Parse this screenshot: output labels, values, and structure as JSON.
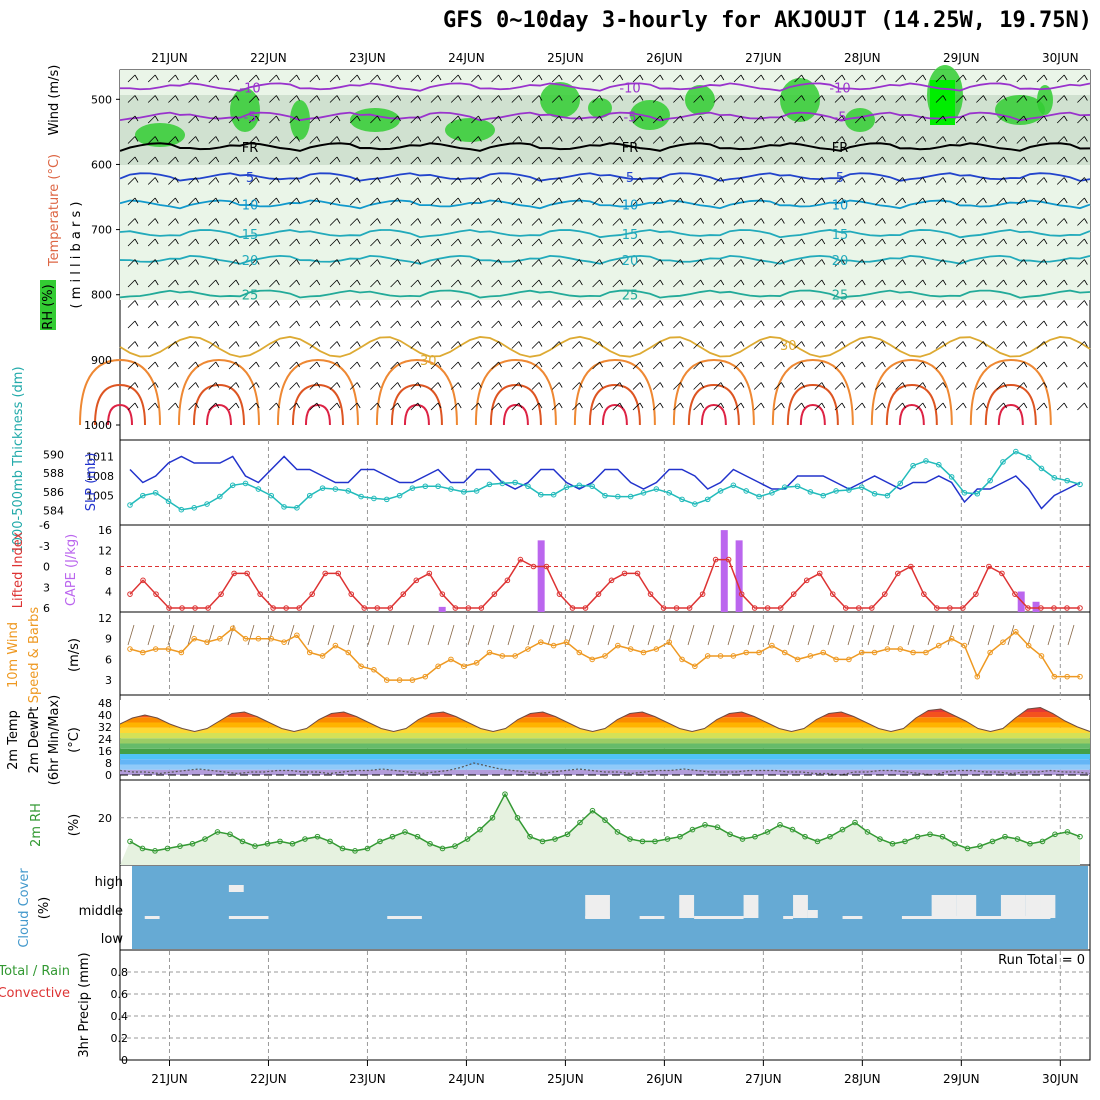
{
  "title": "GFS 0~10day 3-hourly for AKJOUJT (14.25W, 19.75N)",
  "dates": [
    "21JUN",
    "22JUN",
    "23JUN",
    "24JUN",
    "25JUN",
    "26JUN",
    "27JUN",
    "28JUN",
    "29JUN",
    "30JUN"
  ],
  "run_total": "Run Total = 0",
  "colors": {
    "rh_green": "#33cc33",
    "temp_purple": "#9933cc",
    "slp": "#2233cc",
    "thick": "#22bbbb",
    "li": "#dd3333",
    "cape": "#bb66ee",
    "wind": "#ee9922",
    "rh2m": "#339933",
    "cloud": "#66aad4"
  },
  "panels": {
    "upper": {
      "labels": {
        "wind": "Wind (m/s)",
        "temp": "Temperature (°C)",
        "rh": "RH (%)",
        "mb": "( m i l l i b a r s )"
      },
      "yticks": [
        "500",
        "600",
        "700",
        "800",
        "900",
        "1000"
      ],
      "contour_labels": [
        "-10",
        "-5",
        "FR",
        "5",
        "10",
        "15",
        "20",
        "25",
        "30"
      ]
    },
    "slp": {
      "label_thick": "1000-500mb Thickness (dm)",
      "label_slp": "SLP (mb)",
      "yticks_left": [
        "590",
        "588",
        "586",
        "584"
      ],
      "yticks_right": [
        "1011",
        "1008",
        "1005"
      ]
    },
    "cape": {
      "label_li": "Lifted Index",
      "label_cape": "CAPE (J/kg)",
      "yticks_left": [
        "-3",
        "0",
        "3",
        "6",
        "-6"
      ],
      "yticks_right": [
        "16",
        "12",
        "8",
        "4"
      ]
    },
    "wind10": {
      "label1": "10m Wind",
      "label2": "Speed & Barbs",
      "unit": "(m/s)",
      "yticks": [
        "12",
        "9",
        "6",
        "3"
      ]
    },
    "temp2m": {
      "label1": "2m Temp",
      "label2": "2m DewPt",
      "label3": "(6hr Min/Max)",
      "unit": "(°C)",
      "yticks": [
        "48",
        "40",
        "32",
        "24",
        "16",
        "8",
        "0"
      ]
    },
    "rh2m": {
      "label": "2m RH",
      "unit": "(%)",
      "yticks": [
        "20"
      ]
    },
    "cloud": {
      "label": "Cloud Cover",
      "unit": "(%)",
      "levels": [
        "high",
        "middle",
        "low"
      ]
    },
    "precip": {
      "label1": "Total / Rain",
      "label2": "Convective",
      "label3": "3hr Precip (mm)",
      "yticks": [
        "0.8",
        "0.6",
        "0.4",
        "0.2",
        "0"
      ]
    }
  },
  "chart_data": [
    {
      "type": "line",
      "name": "slp",
      "series": [
        {
          "name": "SLP (mb)",
          "values": [
            1009,
            1007,
            1008,
            1010,
            1011,
            1010,
            1010,
            1010,
            1011,
            1008,
            1007,
            1009,
            1011,
            1009,
            1009,
            1008,
            1007,
            1007,
            1009,
            1009,
            1008,
            1007,
            1007,
            1008,
            1009,
            1007,
            1007,
            1009,
            1009,
            1007,
            1006,
            1007,
            1009,
            1009,
            1007,
            1006,
            1007,
            1009,
            1009,
            1007,
            1006,
            1007,
            1009,
            1009,
            1008,
            1006,
            1007,
            1009,
            1008,
            1007,
            1006,
            1006,
            1008,
            1008,
            1008,
            1007,
            1006,
            1007,
            1008,
            1007,
            1006,
            1007,
            1007,
            1008,
            1007,
            1004,
            1006,
            1006,
            1007,
            1008,
            1006,
            1003,
            1005,
            1006,
            1007
          ]
        }
      ]
    },
    {
      "type": "line",
      "name": "thickness",
      "series": [
        {
          "name": "1000-500mb Thickness (dm)",
          "values": [
            584.6,
            585.6,
            585.9,
            585,
            584.1,
            584.3,
            584.7,
            585.5,
            586.7,
            586.9,
            586.3,
            585.6,
            584.4,
            584.3,
            585.6,
            586.4,
            586.3,
            586.1,
            585.5,
            585.3,
            585.2,
            585.6,
            586.4,
            586.6,
            586.6,
            586.3,
            586,
            586.1,
            586.8,
            586.9,
            587,
            586.6,
            585.7,
            585.7,
            586.5,
            586.7,
            586.6,
            585.6,
            585.5,
            585.5,
            585.9,
            586.3,
            585.9,
            585.2,
            584.7,
            585.2,
            586.1,
            586.7,
            586.1,
            585.5,
            585.9,
            586.5,
            586.6,
            586,
            585.6,
            586.1,
            586.2,
            586.5,
            585.8,
            585.6,
            586.9,
            588.8,
            589.3,
            588.9,
            587.6,
            585.9,
            585.8,
            587.2,
            589.2,
            590.3,
            589.7,
            588.5,
            587.5,
            587.2,
            586.8
          ]
        }
      ]
    },
    {
      "type": "line",
      "name": "lifted_index",
      "series": [
        {
          "name": "Lifted Index",
          "values": [
            4,
            2,
            4,
            6,
            6,
            6,
            6,
            4,
            1,
            1,
            4,
            6,
            6,
            6,
            4,
            1,
            1,
            4,
            6,
            6,
            6,
            4,
            2,
            1,
            4,
            6,
            6,
            6,
            4,
            2,
            -1,
            0,
            0,
            4,
            6,
            6,
            4,
            2,
            1,
            1,
            4,
            6,
            6,
            6,
            4,
            -1,
            -1,
            4,
            6,
            6,
            6,
            4,
            2,
            1,
            4,
            6,
            6,
            6,
            4,
            1,
            0,
            4,
            6,
            6,
            6,
            4,
            0,
            1,
            4,
            6,
            6,
            6,
            6,
            6
          ]
        }
      ]
    },
    {
      "type": "bar",
      "name": "cape",
      "categories": [
        "23.8",
        "24.75",
        "26.6",
        "26.75",
        "29.6",
        "29.75"
      ],
      "values": [
        1,
        14,
        16,
        14,
        4,
        2
      ]
    },
    {
      "type": "line",
      "name": "wind10m",
      "series": [
        {
          "name": "10m Wind Speed",
          "values": [
            7.5,
            7,
            7.5,
            7.5,
            7,
            9,
            8.5,
            9,
            10.5,
            9,
            9,
            9,
            8.5,
            9.5,
            7,
            6.5,
            8,
            7,
            5,
            4.5,
            3,
            3,
            3,
            3.5,
            5,
            6,
            5,
            5.5,
            7,
            6.5,
            6.5,
            7.5,
            8.5,
            8,
            8.5,
            7,
            6,
            6.5,
            8,
            7.5,
            7,
            7.5,
            8.5,
            6,
            5,
            6.5,
            6.5,
            6.5,
            7,
            7,
            8,
            7,
            6,
            6.5,
            7,
            6,
            6,
            7,
            7,
            7.5,
            7.5,
            7,
            7,
            8,
            9,
            8,
            3.5,
            7,
            8.5,
            10,
            8,
            6.5,
            3.5,
            3.5,
            3.5
          ]
        }
      ]
    },
    {
      "type": "area",
      "name": "temp2m",
      "series": [
        {
          "name": "2m Temp",
          "values": [
            34,
            38,
            40,
            38,
            34,
            31,
            29,
            31,
            36,
            41,
            42,
            39,
            35,
            31,
            29,
            31,
            37,
            41,
            42,
            39,
            35,
            31,
            29,
            31,
            37,
            41,
            42,
            39,
            35,
            31,
            29,
            31,
            37,
            41,
            42,
            39,
            35,
            31,
            29,
            31,
            37,
            41,
            42,
            39,
            35,
            31,
            29,
            31,
            37,
            41,
            42,
            39,
            35,
            31,
            29,
            31,
            37,
            41,
            42,
            39,
            35,
            31,
            29,
            31,
            38,
            43,
            44,
            40,
            36,
            31,
            29,
            31,
            38,
            44,
            45,
            41,
            36,
            32,
            29
          ]
        },
        {
          "name": "2m DewPt",
          "values": [
            3,
            2,
            2,
            1,
            2,
            3,
            4,
            3,
            2,
            1,
            2,
            2,
            3,
            3,
            2,
            2,
            1,
            2,
            3,
            3,
            4,
            3,
            2,
            1,
            2,
            3,
            5,
            8,
            6,
            4,
            3,
            2,
            1,
            2,
            3,
            4,
            3,
            2,
            2,
            1,
            2,
            3,
            3,
            4,
            3,
            2,
            2,
            2,
            3,
            3,
            3,
            2,
            2,
            1,
            1,
            0,
            2,
            2,
            3,
            3,
            2,
            1,
            0,
            2,
            3,
            3,
            2,
            2,
            1,
            2,
            2,
            3,
            2,
            2,
            1
          ]
        }
      ]
    },
    {
      "type": "line",
      "name": "rh2m",
      "series": [
        {
          "name": "2m RH",
          "values": [
            10,
            7,
            6,
            7,
            8,
            9,
            11,
            14,
            13,
            10,
            8,
            9,
            10,
            9,
            11,
            12,
            10,
            7,
            6,
            7,
            10,
            12,
            14,
            12,
            9,
            7,
            8,
            11,
            15,
            20,
            30,
            20,
            12,
            10,
            11,
            13,
            18,
            23,
            19,
            14,
            11,
            10,
            10,
            11,
            12,
            15,
            17,
            16,
            13,
            11,
            12,
            14,
            17,
            15,
            12,
            10,
            12,
            15,
            18,
            14,
            11,
            9,
            10,
            12,
            13,
            12,
            9,
            7,
            8,
            10,
            12,
            11,
            9,
            10,
            13,
            14,
            12
          ]
        }
      ]
    },
    {
      "type": "bar",
      "name": "cloud_cover",
      "levels": [
        "high",
        "middle",
        "low"
      ],
      "categories": [
        "21.6-21.7 high",
        "25.2-25.4 mid",
        "26.2 mid",
        "26.8 mid",
        "27.3 mid",
        "28.7-29.1 mid",
        "29.4-29.8 mid"
      ],
      "values": [
        1,
        1,
        1,
        1,
        1,
        1,
        1
      ]
    },
    {
      "type": "line",
      "name": "precip",
      "series": [
        {
          "name": "3hr Precip (mm)",
          "values": [
            0,
            0,
            0,
            0,
            0,
            0,
            0,
            0,
            0,
            0
          ]
        }
      ],
      "ylim": [
        0,
        1
      ]
    }
  ]
}
